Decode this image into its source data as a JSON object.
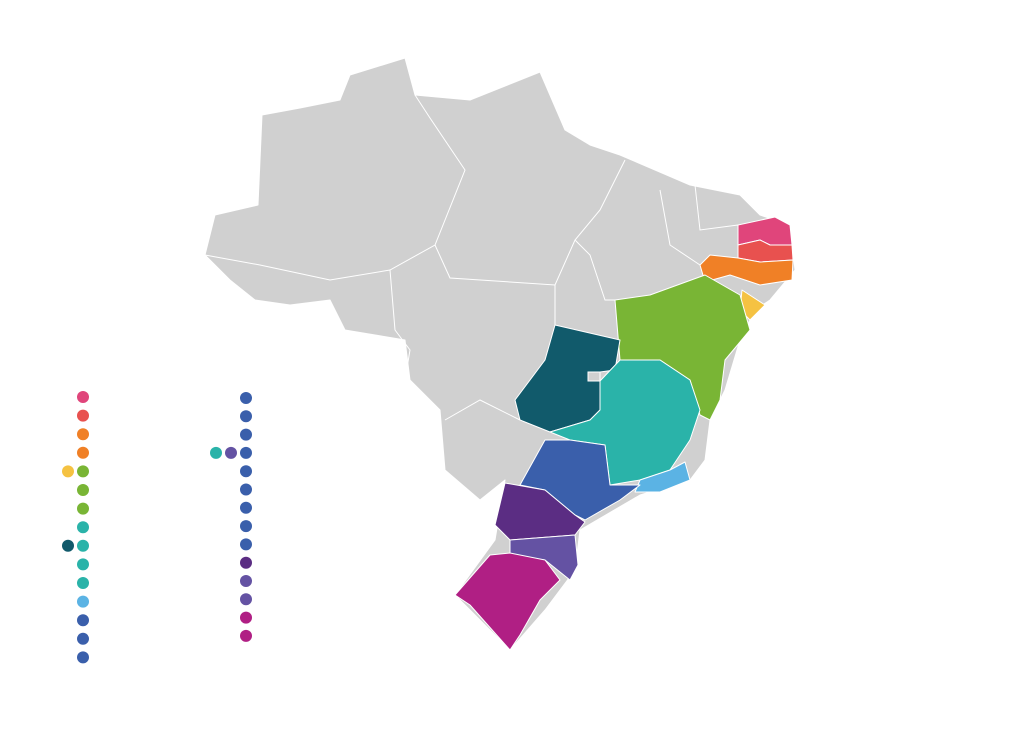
{
  "legend_left": [
    [
      "#e0457b"
    ],
    [
      "#e8514f"
    ],
    [
      "#f08026"
    ],
    [
      "#f08026"
    ],
    [
      "#f5c242",
      "#79b535"
    ],
    [
      "#79b535"
    ],
    [
      "#79b535"
    ],
    [
      "#2ab3a9"
    ],
    [
      "#115a6b",
      "#2ab3a9"
    ],
    [
      "#2ab3a9"
    ],
    [
      "#2ab3a9"
    ],
    [
      "#5bb3e4"
    ],
    [
      "#3a5fab"
    ],
    [
      "#3a5fab"
    ],
    [
      "#3a5fab"
    ]
  ],
  "legend_right": [
    [
      "#3a5fab"
    ],
    [
      "#3a5fab"
    ],
    [
      "#3a5fab"
    ],
    [
      "#2ab3a9",
      "#6452a3",
      "#3a5fab"
    ],
    [
      "#3a5fab"
    ],
    [
      "#3a5fab"
    ],
    [
      "#3a5fab"
    ],
    [
      "#3a5fab"
    ],
    [
      "#3a5fab"
    ],
    [
      "#5b2d83"
    ],
    [
      "#6452a3"
    ],
    [
      "#6452a3"
    ],
    [
      "#b01f84"
    ],
    [
      "#b01f84"
    ]
  ]
}
